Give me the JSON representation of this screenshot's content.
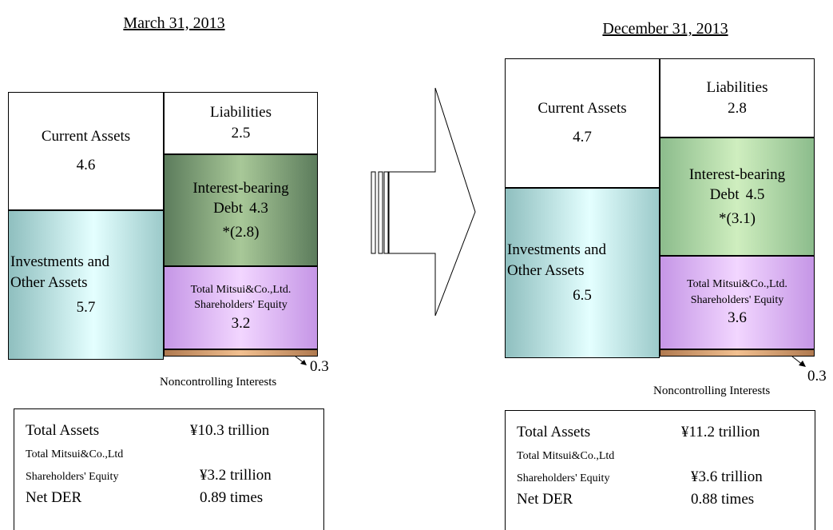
{
  "panels": [
    {
      "date": "March 31, 2013",
      "current_assets": {
        "label": [
          "Current Assets"
        ],
        "value": 4.6
      },
      "investments": {
        "label": [
          "Investments and",
          "Other Assets"
        ],
        "value": 5.7
      },
      "liabilities": {
        "label": [
          "Liabilities"
        ],
        "value": 2.5
      },
      "interest_bearing_debt": {
        "label": [
          "Interest-bearing",
          "Debt"
        ],
        "value": 4.3,
        "note": "*(2.8)"
      },
      "equity": {
        "label": [
          "Total Mitsui&Co.,Ltd.",
          "Shareholders' Equity"
        ],
        "value": 3.2
      },
      "noncontrolling": {
        "label": "Noncontrolling Interests",
        "value": 0.3
      },
      "summary": [
        {
          "label": [
            "Total Assets"
          ],
          "value": "¥10.3 trillion"
        },
        {
          "label": [
            "Total Mitsui&Co.,Ltd",
            "Shareholders' Equity"
          ],
          "value": "¥3.2 trillion"
        },
        {
          "label": [
            "Net DER"
          ],
          "value": "0.89 times"
        }
      ]
    },
    {
      "date": "December 31, 2013",
      "current_assets": {
        "label": [
          "Current Assets"
        ],
        "value": 4.7
      },
      "investments": {
        "label": [
          "Investments and",
          "Other Assets"
        ],
        "value": 6.5
      },
      "liabilities": {
        "label": [
          "Liabilities"
        ],
        "value": 2.8
      },
      "interest_bearing_debt": {
        "label": [
          "Interest-bearing",
          "Debt"
        ],
        "value": 4.5,
        "note": "*(3.1)"
      },
      "equity": {
        "label": [
          "Total Mitsui&Co.,Ltd.",
          "Shareholders' Equity"
        ],
        "value": 3.6
      },
      "noncontrolling": {
        "label": "Noncontrolling Interests",
        "value": 0.3
      },
      "summary": [
        {
          "label": [
            "Total Assets"
          ],
          "value": "¥11.2 trillion"
        },
        {
          "label": [
            "Total Mitsui&Co.,Ltd",
            "Shareholders' Equity"
          ],
          "value": "¥3.6 trillion"
        },
        {
          "label": [
            "Net DER"
          ],
          "value": "0.88 times"
        }
      ]
    }
  ]
}
